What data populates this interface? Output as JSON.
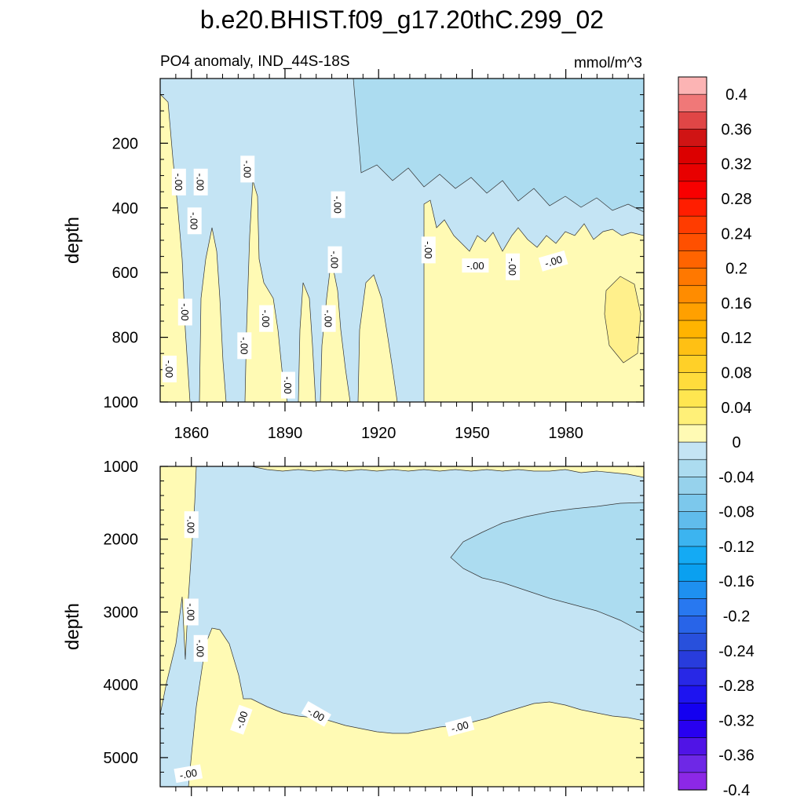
{
  "chart_data": {
    "type": "heatmap",
    "title": "b.e20.BHIST.f09_g17.20thC.299_02",
    "subtitle": "PO4 anomaly, IND_44S-18S",
    "units": "mmol/m^3",
    "xlabel": "",
    "ylabel": "depth",
    "xlim": [
      1850,
      2005
    ],
    "x_ticks": [
      1860,
      1890,
      1920,
      1950,
      1980
    ],
    "contour_label": "-.00",
    "colors": {
      "zero_to_pos": "#fffab4",
      "small_pos": "#fff08c",
      "zero_to_neg": "#c4e4f4",
      "small_neg": "#acdcf0"
    },
    "panels": [
      {
        "name": "upper",
        "ylabel": "depth",
        "ylim": [
          0,
          1000
        ],
        "y_ticks": [
          200,
          400,
          600,
          800,
          1000
        ],
        "pos_region_top_by_year": [
          [
            1935,
            560
          ],
          [
            1940,
            470
          ],
          [
            1945,
            430
          ],
          [
            1950,
            500
          ],
          [
            1955,
            530
          ],
          [
            1960,
            520
          ],
          [
            1965,
            540
          ],
          [
            1970,
            500
          ],
          [
            1975,
            520
          ],
          [
            1980,
            480
          ],
          [
            1985,
            470
          ],
          [
            1990,
            460
          ],
          [
            1995,
            450
          ],
          [
            2000,
            470
          ],
          [
            2005,
            500
          ]
        ]
      },
      {
        "name": "lower",
        "ylabel": "depth",
        "ylim": [
          5400,
          1000
        ],
        "y_ticks": [
          1000,
          2000,
          3000,
          4000,
          5000
        ],
        "pos_region_top_by_year": [
          [
            1868,
            3300
          ],
          [
            1875,
            3500
          ],
          [
            1885,
            4100
          ],
          [
            1900,
            4300
          ],
          [
            1910,
            4400
          ],
          [
            1920,
            4600
          ],
          [
            1930,
            4600
          ],
          [
            1940,
            4550
          ],
          [
            1950,
            4500
          ],
          [
            1960,
            4400
          ],
          [
            1970,
            4350
          ],
          [
            1980,
            4250
          ],
          [
            1990,
            4300
          ],
          [
            2000,
            4400
          ],
          [
            2005,
            4450
          ]
        ],
        "neg_core": {
          "min_year": 1943,
          "max_year": 2005,
          "top_depth": 1500,
          "bottom_depth": 3300
        }
      }
    ],
    "colorbar": {
      "labels": [
        "0.4",
        "0.36",
        "0.32",
        "0.28",
        "0.24",
        "0.2",
        "0.16",
        "0.12",
        "0.08",
        "0.04",
        "0",
        "-0.04",
        "-0.08",
        "-0.12",
        "-0.16",
        "-0.2",
        "-0.24",
        "-0.28",
        "-0.32",
        "-0.36",
        "-0.4"
      ],
      "colors_top_to_bottom": [
        "#fcb4b4",
        "#f07878",
        "#e04646",
        "#d01414",
        "#dc0000",
        "#e80000",
        "#f80000",
        "#ff1e00",
        "#ff3c00",
        "#ff5000",
        "#ff6400",
        "#ff7800",
        "#ff8c00",
        "#ffa000",
        "#ffb400",
        "#ffc014",
        "#ffd028",
        "#ffdc3c",
        "#ffe650",
        "#fff078",
        "#fffab4",
        "#c4e4f4",
        "#acdcf0",
        "#96d2ec",
        "#7cc8ec",
        "#60bcec",
        "#3cb4f0",
        "#14aaf4",
        "#0aa0f0",
        "#1e90f0",
        "#2878f0",
        "#2864e8",
        "#2850dc",
        "#283cdc",
        "#2828e6",
        "#1e14f0",
        "#1400f0",
        "#2800f0",
        "#5014e6",
        "#6e28e6",
        "#8c28e6"
      ]
    }
  }
}
